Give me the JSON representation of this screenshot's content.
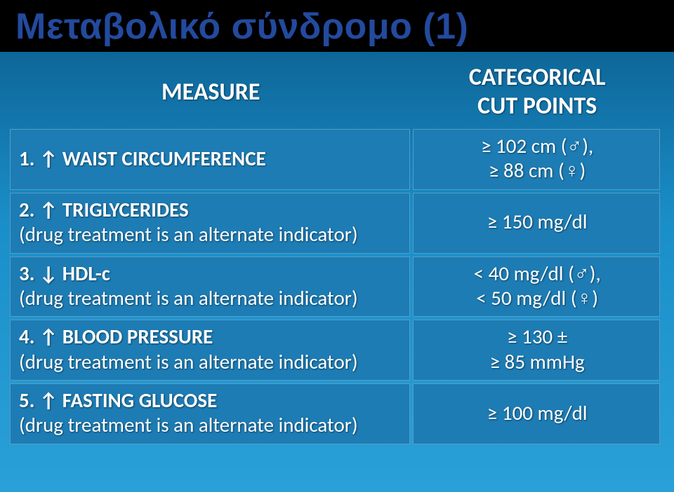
{
  "title": {
    "text": "Μεταβολικό σύνδρομο (1)",
    "color": "#234a9e"
  },
  "header": {
    "measure": "MEASURE",
    "cut": "CATEGORICAL\nCUT POINTS",
    "bg": "rgba(255,255,255,0)"
  },
  "rows": [
    {
      "bg": "#1d7cb4",
      "measure_line1": "1. ↑ WAIST CIRCUMFERENCE",
      "measure_line2": "",
      "cut": "≥ 102 cm (♂),\n≥ 88 cm (♀)"
    },
    {
      "bg": "#1d7cb4",
      "measure_line1": "2. ↑ TRIGLYCERIDES",
      "measure_line2": "(drug treatment  is an alternate indicator)",
      "cut": "≥ 150 mg/dl"
    },
    {
      "bg": "#1d7cb4",
      "measure_line1": "3. ↓ HDL-c",
      "measure_line2": "(drug treatment is an alternate indicator)",
      "cut": "< 40 mg/dl (♂),\n< 50 mg/dl (♀)"
    },
    {
      "bg": "#1d7cb4",
      "measure_line1": "4. ↑ BLOOD PRESSURE",
      "measure_line2": "(drug treatment is an alternate indicator)",
      "cut": "≥ 130 ±\n≥ 85 mmHg"
    },
    {
      "bg": "#1d7cb4",
      "measure_line1": "5. ↑ FASTING GLUCOSE",
      "measure_line2": "(drug treatment is an alternate indicator)",
      "cut": "≥ 100 mg/dl"
    }
  ],
  "style": {
    "row_border": "1px solid rgba(255,255,255,0.25)"
  }
}
